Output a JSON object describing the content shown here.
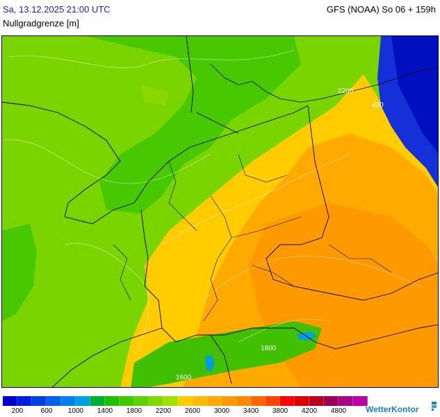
{
  "header": {
    "valid_time": "Sa, 13.12.2025 21:00 UTC",
    "model_run": "GFS (NOAA) So 06 + 159h",
    "parameter": "Nullgradgrenze [m]"
  },
  "map": {
    "contour_labels": [
      "2200",
      "400",
      "1800",
      "1600"
    ]
  },
  "legend": {
    "colors": [
      "#0000cc",
      "#0020dd",
      "#0040e0",
      "#0060e8",
      "#0080f0",
      "#00a0e0",
      "#00b030",
      "#20c000",
      "#40c800",
      "#60d000",
      "#80d800",
      "#a0e000",
      "#ffcc00",
      "#ffbb00",
      "#ffaa00",
      "#ff9900",
      "#ff8800",
      "#ff6600",
      "#ff4400",
      "#ff0000",
      "#dd0000",
      "#bb0022",
      "#990055",
      "#aa0088",
      "#bb00aa"
    ],
    "labels": [
      "200",
      "600",
      "1000",
      "1400",
      "1800",
      "2200",
      "2600",
      "3000",
      "3400",
      "3800",
      "4200",
      "4800"
    ]
  },
  "brand": {
    "name": "WetterKontor"
  }
}
